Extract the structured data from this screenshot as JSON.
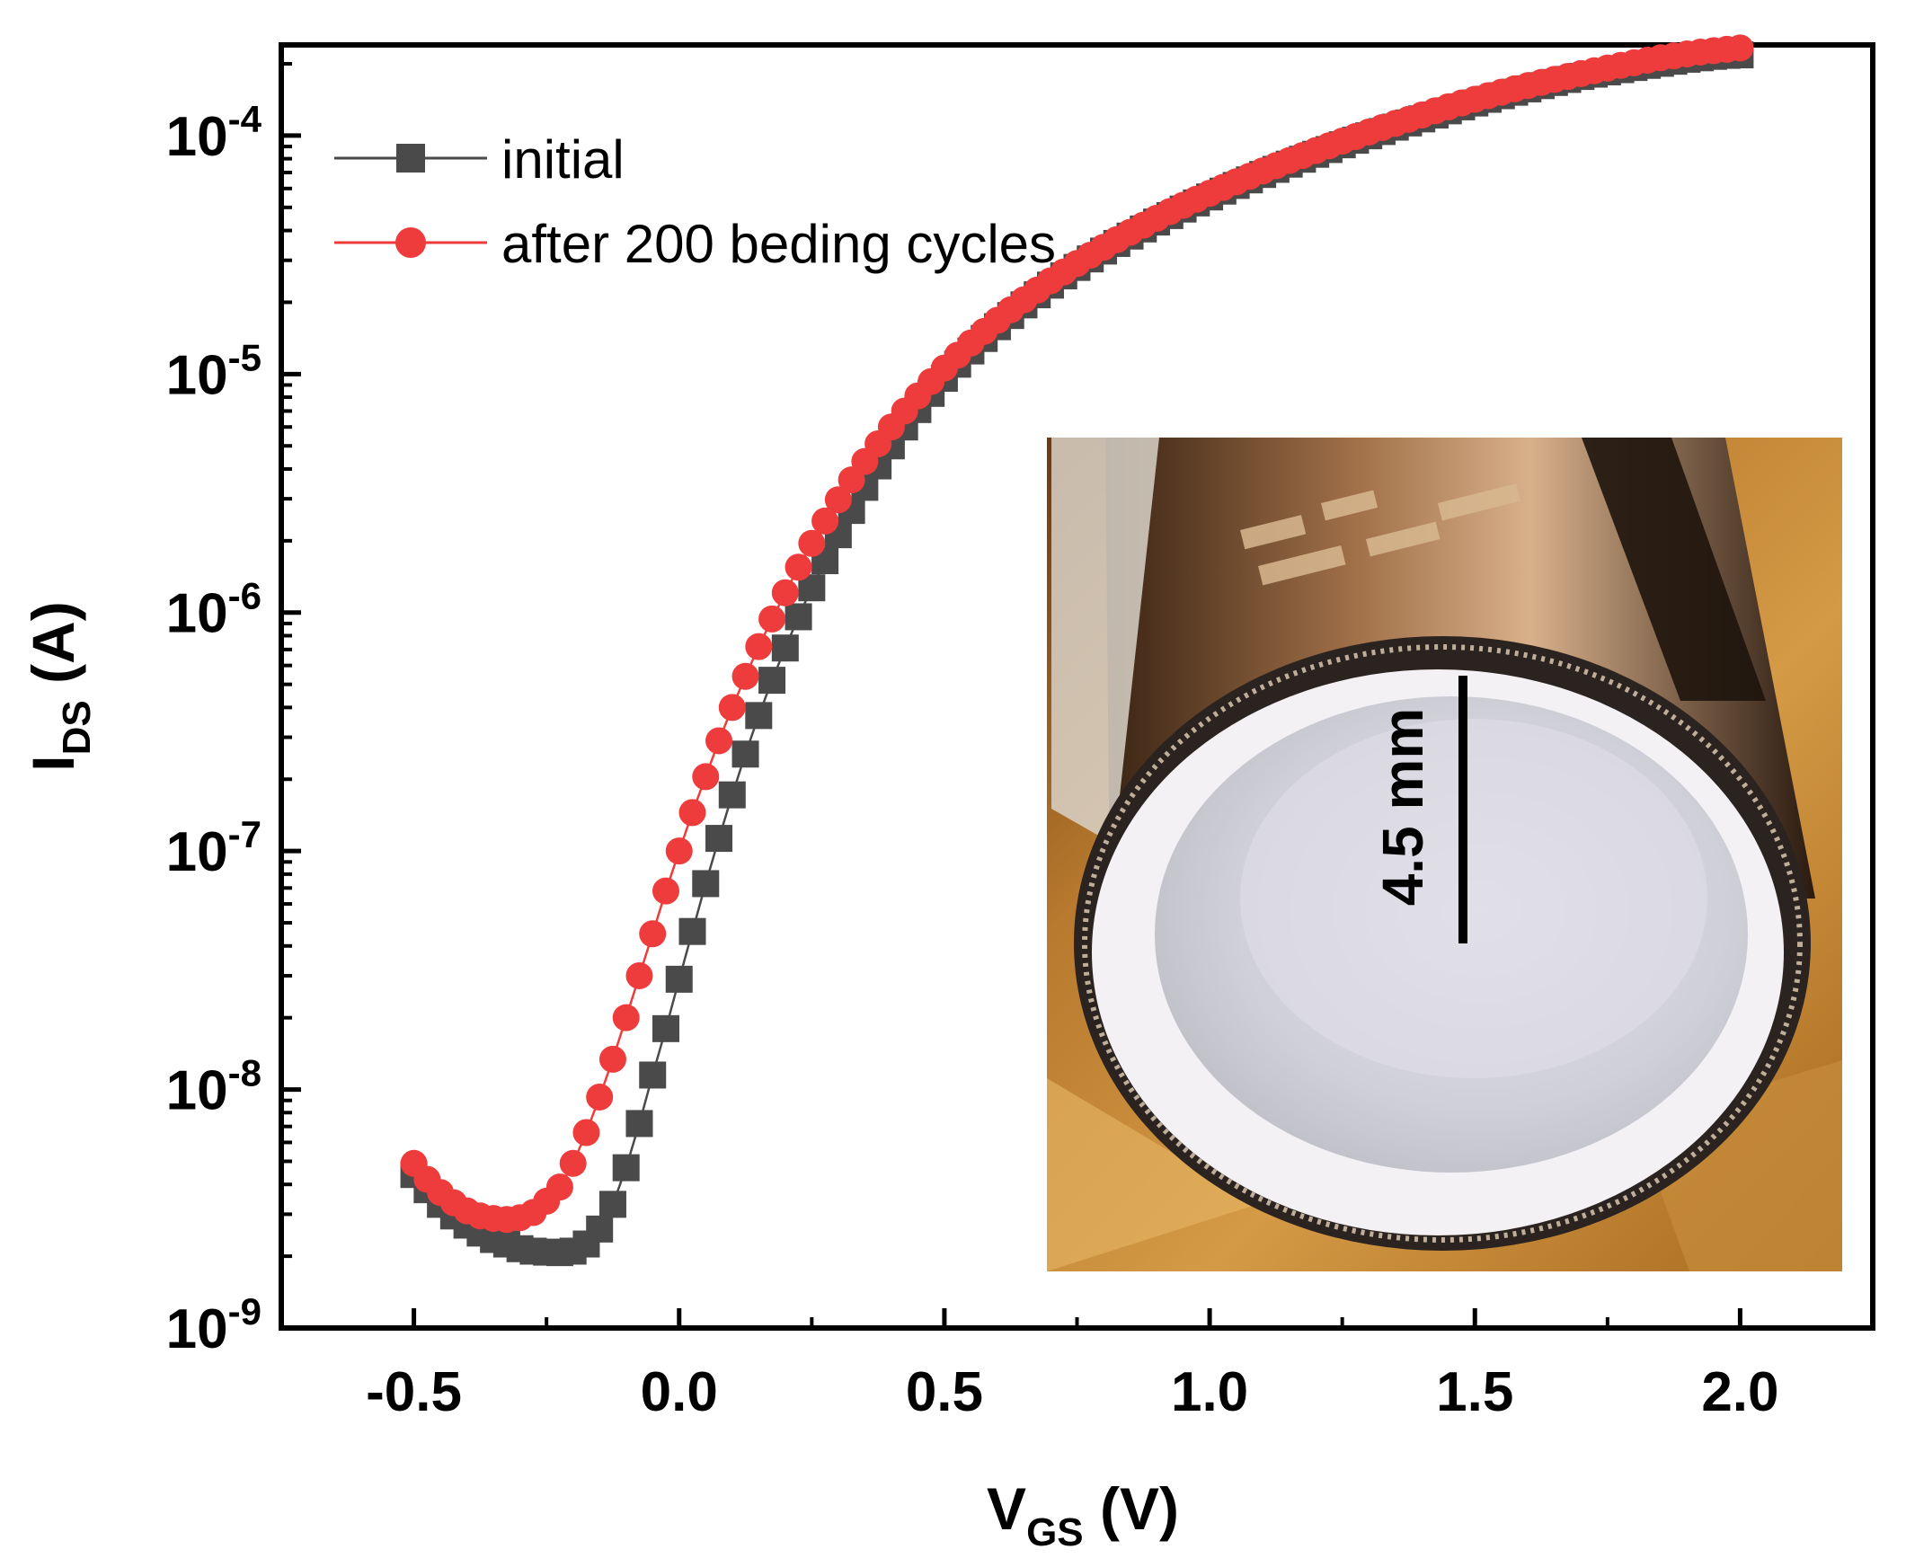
{
  "chart_data": {
    "type": "scatter",
    "title": "",
    "xlabel": {
      "main": "V",
      "sub": "GS",
      "unit": " (V)"
    },
    "ylabel": {
      "main": "I",
      "sub": "DS",
      "unit": " (A)"
    },
    "xscale": "linear",
    "yscale": "log",
    "xlim": [
      -0.75,
      2.25
    ],
    "ylim": [
      1e-09,
      0.00024
    ],
    "x_ticks": [
      {
        "value": -0.5,
        "label": "-0.5"
      },
      {
        "value": 0.0,
        "label": "0.0"
      },
      {
        "value": 0.5,
        "label": "0.5"
      },
      {
        "value": 1.0,
        "label": "1.0"
      },
      {
        "value": 1.5,
        "label": "1.5"
      },
      {
        "value": 2.0,
        "label": "2.0"
      }
    ],
    "y_ticks": [
      {
        "value": 1e-09,
        "base": "10",
        "exp": "-9"
      },
      {
        "value": 1e-08,
        "base": "10",
        "exp": "-8"
      },
      {
        "value": 1e-07,
        "base": "10",
        "exp": "-7"
      },
      {
        "value": 1e-06,
        "base": "10",
        "exp": "-6"
      },
      {
        "value": 1e-05,
        "base": "10",
        "exp": "-5"
      },
      {
        "value": 0.0001,
        "base": "10",
        "exp": "-4"
      }
    ],
    "grid": false,
    "legend_position": "top-left",
    "series": [
      {
        "name": "initial",
        "color": "#4a4a4a",
        "marker": "square",
        "x": [
          -0.5,
          -0.475,
          -0.45,
          -0.425,
          -0.4,
          -0.375,
          -0.35,
          -0.325,
          -0.3,
          -0.275,
          -0.25,
          -0.225,
          -0.2,
          -0.175,
          -0.15,
          -0.125,
          -0.1,
          -0.075,
          -0.05,
          -0.025,
          0.0,
          0.025,
          0.05,
          0.075,
          0.1,
          0.125,
          0.15,
          0.175,
          0.2,
          0.225,
          0.25,
          0.275,
          0.3,
          0.325,
          0.35,
          0.375,
          0.4,
          0.425,
          0.45,
          0.475,
          0.5,
          0.525,
          0.55,
          0.575,
          0.6,
          0.625,
          0.65,
          0.675,
          0.7,
          0.725,
          0.75,
          0.775,
          0.8,
          0.825,
          0.85,
          0.875,
          0.9,
          0.925,
          0.95,
          0.975,
          1.0,
          1.025,
          1.05,
          1.075,
          1.1,
          1.125,
          1.15,
          1.175,
          1.2,
          1.225,
          1.25,
          1.275,
          1.3,
          1.325,
          1.35,
          1.375,
          1.4,
          1.425,
          1.45,
          1.475,
          1.5,
          1.525,
          1.55,
          1.575,
          1.6,
          1.625,
          1.65,
          1.675,
          1.7,
          1.725,
          1.75,
          1.775,
          1.8,
          1.825,
          1.85,
          1.875,
          1.9,
          1.925,
          1.95,
          1.975,
          2.0
        ],
        "y": [
          4.4e-09,
          3.8e-09,
          3.3e-09,
          2.95e-09,
          2.7e-09,
          2.5e-09,
          2.35e-09,
          2.25e-09,
          2.15e-09,
          2.1e-09,
          2.08e-09,
          2.07e-09,
          2.1e-09,
          2.25e-09,
          2.6e-09,
          3.3e-09,
          4.7e-09,
          7.2e-09,
          1.15e-08,
          1.8e-08,
          2.9e-08,
          4.6e-08,
          7.3e-08,
          1.13e-07,
          1.72e-07,
          2.55e-07,
          3.7e-07,
          5.2e-07,
          7.1e-07,
          9.6e-07,
          1.27e-06,
          1.65e-06,
          2.12e-06,
          2.68e-06,
          3.35e-06,
          4.12e-06,
          5e-06,
          6e-06,
          7.1e-06,
          8.3e-06,
          9.6e-06,
          1.1e-05,
          1.25e-05,
          1.41e-05,
          1.58e-05,
          1.76e-05,
          1.95e-05,
          2.15e-05,
          2.36e-05,
          2.58e-05,
          2.8e-05,
          3.04e-05,
          3.28e-05,
          3.53e-05,
          3.79e-05,
          4.06e-05,
          4.34e-05,
          4.62e-05,
          4.92e-05,
          5.22e-05,
          5.53e-05,
          5.85e-05,
          6.18e-05,
          6.52e-05,
          6.87e-05,
          7.22e-05,
          7.59e-05,
          7.96e-05,
          8.35e-05,
          8.74e-05,
          9.15e-05,
          9.56e-05,
          9.98e-05,
          0.000104,
          0.0001085,
          0.000113,
          0.0001175,
          0.000122,
          0.000127,
          0.000132,
          0.000137,
          0.000142,
          0.000147,
          0.000152,
          0.000157,
          0.000162,
          0.000167,
          0.000172,
          0.000177,
          0.000181,
          0.000185,
          0.000189,
          0.000193,
          0.000197,
          0.000201,
          0.000205,
          0.000209,
          0.000212,
          0.000215,
          0.000217,
          0.000218
        ]
      },
      {
        "name": "after 200 beding cycles",
        "color": "#ee3b3b",
        "marker": "circle",
        "x": [
          -0.5,
          -0.475,
          -0.45,
          -0.425,
          -0.4,
          -0.375,
          -0.35,
          -0.325,
          -0.3,
          -0.275,
          -0.25,
          -0.225,
          -0.2,
          -0.175,
          -0.15,
          -0.125,
          -0.1,
          -0.075,
          -0.05,
          -0.025,
          0.0,
          0.025,
          0.05,
          0.075,
          0.1,
          0.125,
          0.15,
          0.175,
          0.2,
          0.225,
          0.25,
          0.275,
          0.3,
          0.325,
          0.35,
          0.375,
          0.4,
          0.425,
          0.45,
          0.475,
          0.5,
          0.525,
          0.55,
          0.575,
          0.6,
          0.625,
          0.65,
          0.675,
          0.7,
          0.725,
          0.75,
          0.775,
          0.8,
          0.825,
          0.85,
          0.875,
          0.9,
          0.925,
          0.95,
          0.975,
          1.0,
          1.025,
          1.05,
          1.075,
          1.1,
          1.125,
          1.15,
          1.175,
          1.2,
          1.225,
          1.25,
          1.275,
          1.3,
          1.325,
          1.35,
          1.375,
          1.4,
          1.425,
          1.45,
          1.475,
          1.5,
          1.525,
          1.55,
          1.575,
          1.6,
          1.625,
          1.65,
          1.675,
          1.7,
          1.725,
          1.75,
          1.775,
          1.8,
          1.825,
          1.85,
          1.875,
          1.9,
          1.925,
          1.95,
          1.975,
          2.0
        ],
        "y": [
          4.9e-09,
          4.2e-09,
          3.7e-09,
          3.35e-09,
          3.1e-09,
          2.95e-09,
          2.88e-09,
          2.85e-09,
          2.9e-09,
          3.05e-09,
          3.4e-09,
          3.9e-09,
          4.9e-09,
          6.6e-09,
          9.3e-09,
          1.34e-08,
          2e-08,
          3e-08,
          4.5e-08,
          6.8e-08,
          1e-07,
          1.45e-07,
          2.05e-07,
          2.9e-07,
          4e-07,
          5.4e-07,
          7.2e-07,
          9.4e-07,
          1.21e-06,
          1.55e-06,
          1.95e-06,
          2.42e-06,
          2.97e-06,
          3.6e-06,
          4.3e-06,
          5.1e-06,
          6e-06,
          7e-06,
          8.1e-06,
          9.3e-06,
          1.06e-05,
          1.2e-05,
          1.35e-05,
          1.51e-05,
          1.68e-05,
          1.86e-05,
          2.05e-05,
          2.25e-05,
          2.46e-05,
          2.68e-05,
          2.91e-05,
          3.15e-05,
          3.4e-05,
          3.66e-05,
          3.93e-05,
          4.21e-05,
          4.5e-05,
          4.8e-05,
          5.1e-05,
          5.41e-05,
          5.73e-05,
          6.06e-05,
          6.4e-05,
          6.75e-05,
          7.11e-05,
          7.48e-05,
          7.86e-05,
          8.25e-05,
          8.65e-05,
          9.06e-05,
          9.48e-05,
          9.91e-05,
          0.0001035,
          0.000108,
          0.0001125,
          0.000117,
          0.000122,
          0.000127,
          0.000132,
          0.000137,
          0.000142,
          0.000147,
          0.000152,
          0.000157,
          0.000162,
          0.000167,
          0.000172,
          0.000177,
          0.000182,
          0.000187,
          0.000192,
          0.000197,
          0.000202,
          0.000207,
          0.000212,
          0.000216,
          0.00022,
          0.000224,
          0.000227,
          0.00023,
          0.000233
        ]
      }
    ]
  },
  "inset": {
    "description_label": "inset-photo",
    "scale_bar_label": "4.5 mm"
  }
}
